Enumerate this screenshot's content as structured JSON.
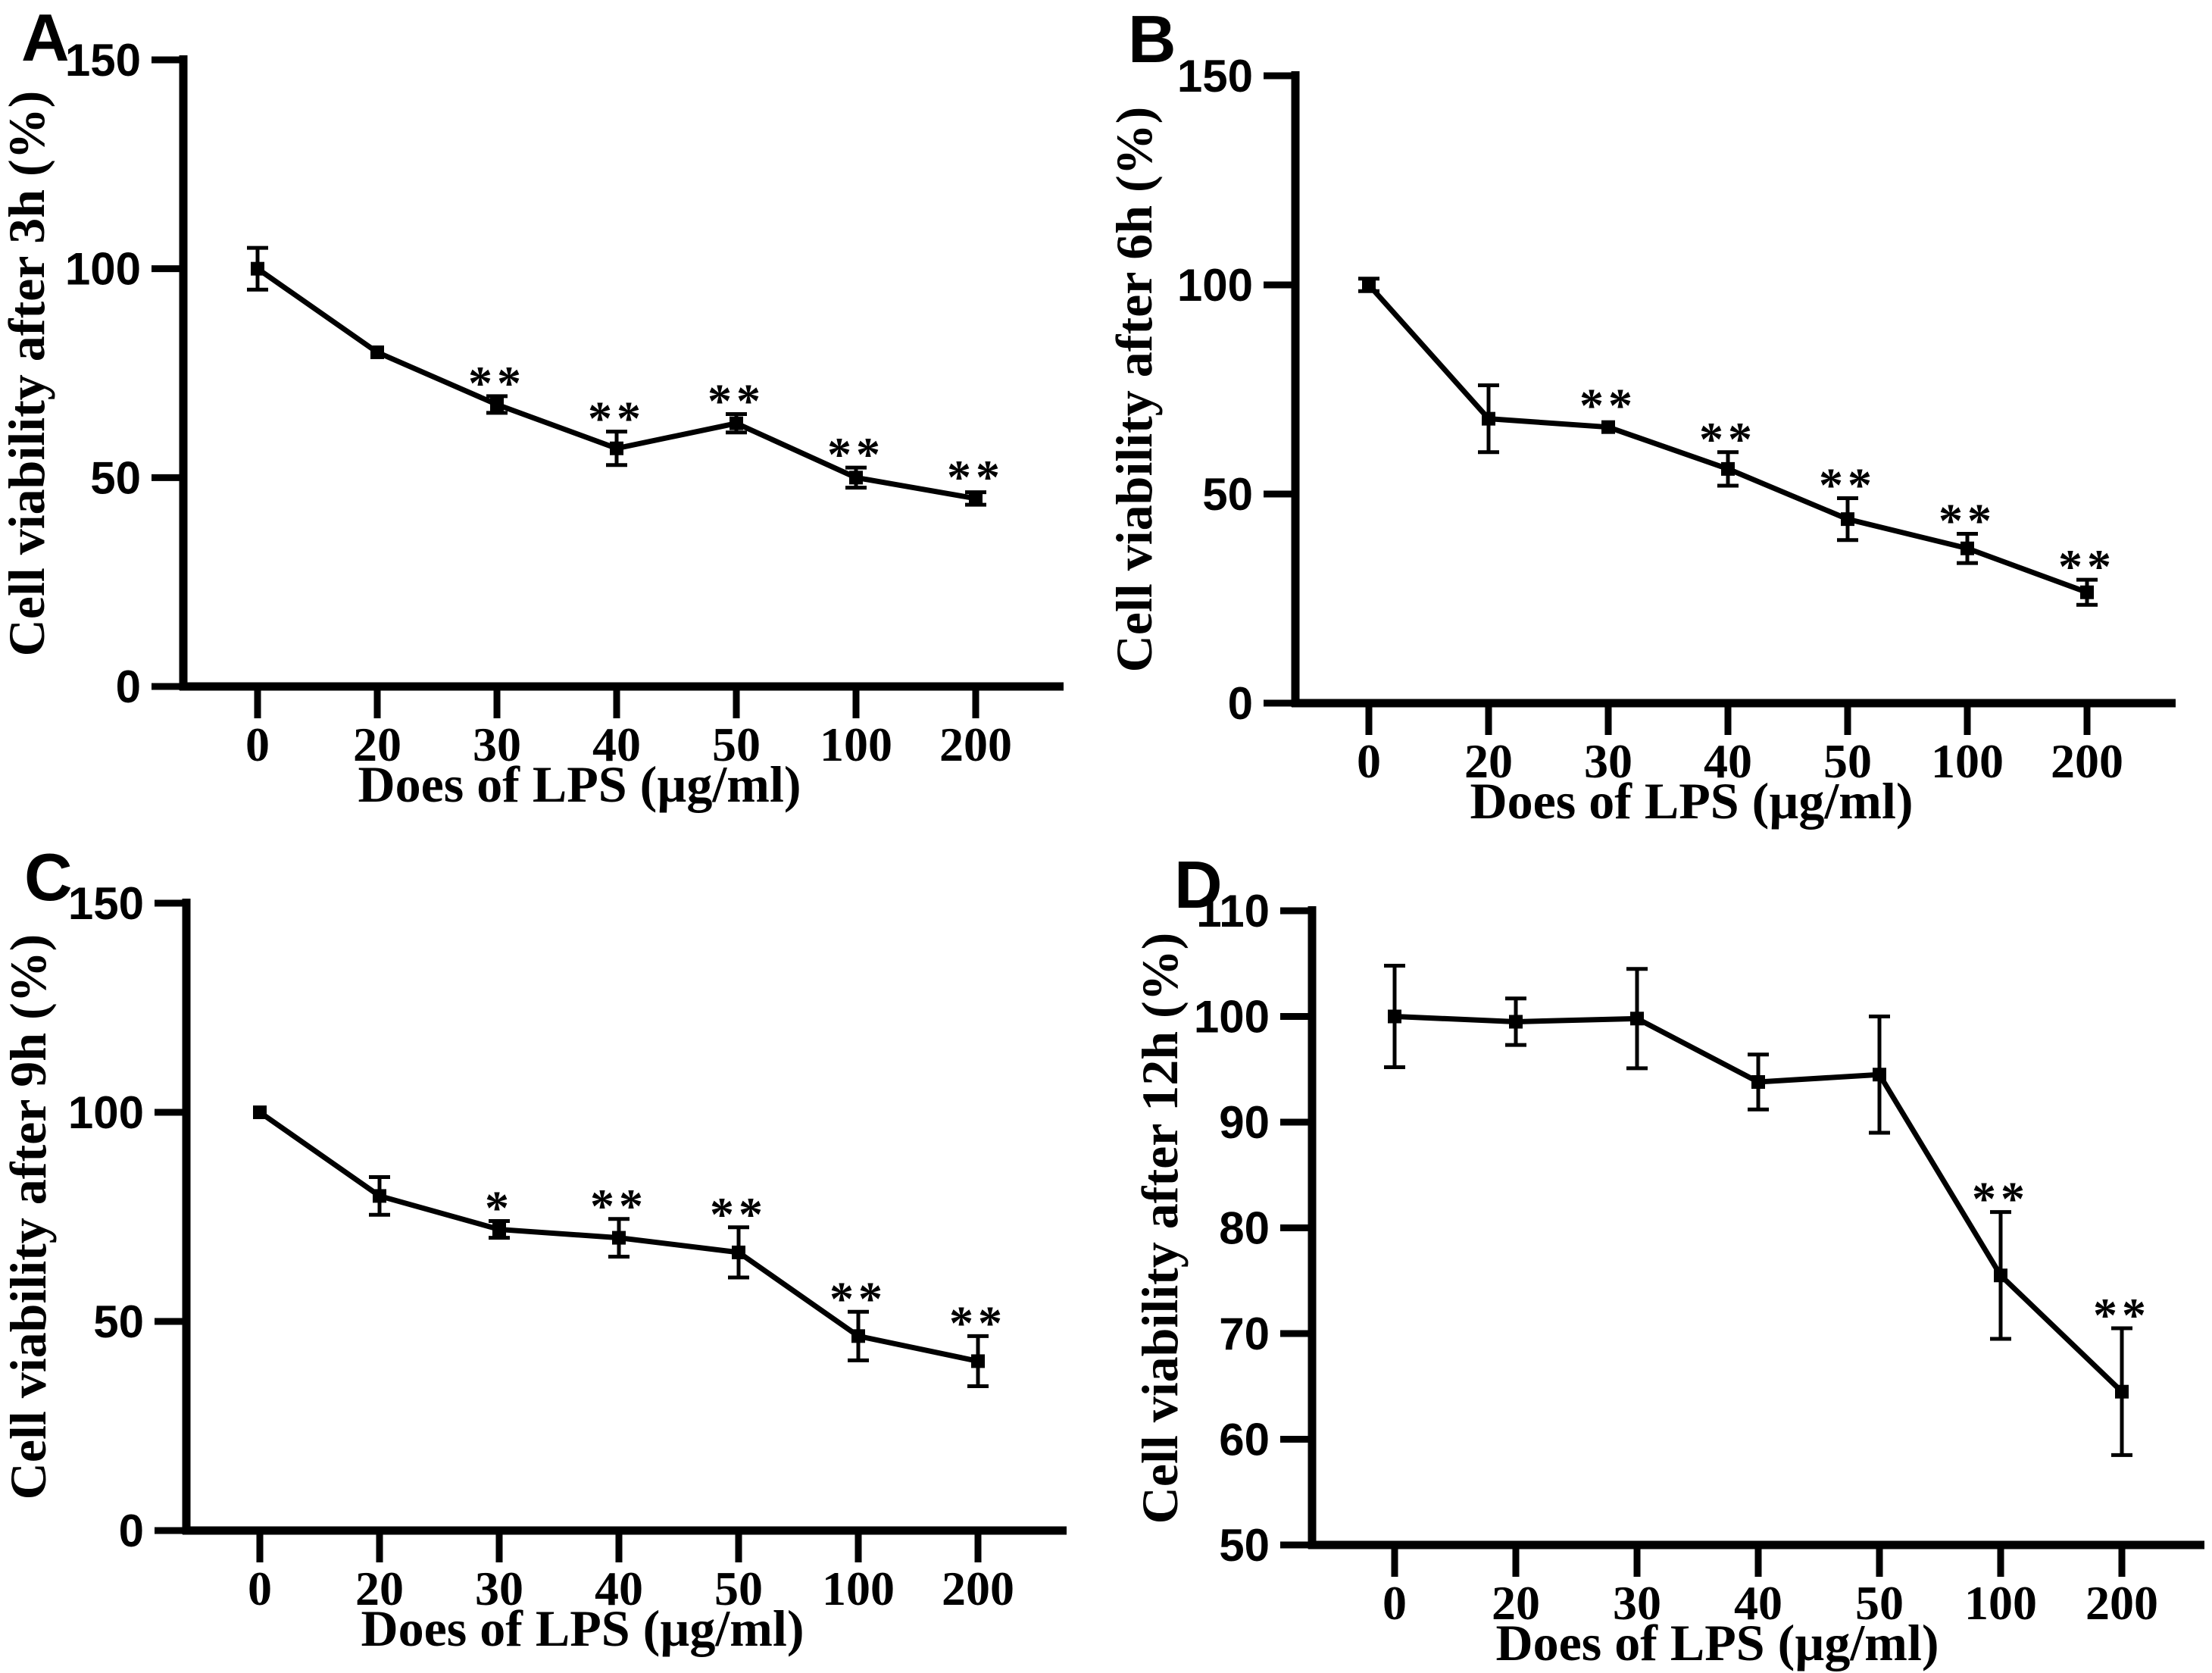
{
  "colors": {
    "ink": "#000000",
    "background": "#ffffff"
  },
  "chart_data": [
    {
      "type": "line",
      "panel": "A",
      "title": "",
      "ylabel": "Cell viability after 3h (%)",
      "xlabel": "Does of LPS (µg/ml)",
      "categories": [
        "0",
        "20",
        "30",
        "40",
        "50",
        "100",
        "200"
      ],
      "series": [
        {
          "name": "cell-viability-3h",
          "values": [
            100,
            80,
            67.5,
            57,
            63,
            50,
            45
          ],
          "errors": [
            5,
            0,
            2,
            4,
            2.2,
            2.4,
            1.5
          ],
          "significance": [
            "",
            "",
            "**",
            "**",
            "**",
            "**",
            "**"
          ]
        }
      ],
      "ylim": [
        0,
        150
      ],
      "yticks": [
        0,
        50,
        100,
        150
      ],
      "marker": "filled-square",
      "line_color": "#000000",
      "grid": false,
      "legend": "none"
    },
    {
      "type": "line",
      "panel": "B",
      "title": "",
      "ylabel": "Cell viability after 6h (%)",
      "xlabel": "Does of LPS (µg/ml)",
      "categories": [
        "0",
        "20",
        "30",
        "40",
        "50",
        "100",
        "200"
      ],
      "series": [
        {
          "name": "cell-viability-6h",
          "values": [
            100,
            68,
            66,
            56,
            44,
            37,
            26.5
          ],
          "errors": [
            1.5,
            8,
            0,
            4,
            5,
            3.5,
            3
          ],
          "significance": [
            "",
            "",
            "**",
            "**",
            "**",
            "**",
            "**"
          ]
        }
      ],
      "ylim": [
        0,
        150
      ],
      "yticks": [
        0,
        50,
        100,
        150
      ],
      "marker": "filled-square",
      "line_color": "#000000",
      "grid": false,
      "legend": "none"
    },
    {
      "type": "line",
      "panel": "C",
      "title": "",
      "ylabel": "Cell viability after 9h (%)",
      "xlabel": "Does of LPS (µg/ml)",
      "categories": [
        "0",
        "20",
        "30",
        "40",
        "50",
        "100",
        "200"
      ],
      "series": [
        {
          "name": "cell-viability-9h",
          "values": [
            100,
            80,
            72,
            70,
            66.5,
            46.5,
            40.5
          ],
          "errors": [
            0,
            4.5,
            2,
            4.5,
            6,
            5.8,
            6
          ],
          "significance": [
            "",
            "",
            "*",
            "**",
            "**",
            "**",
            "**"
          ]
        }
      ],
      "ylim": [
        0,
        150
      ],
      "yticks": [
        0,
        50,
        100,
        150
      ],
      "marker": "filled-square",
      "line_color": "#000000",
      "grid": false,
      "legend": "none"
    },
    {
      "type": "line",
      "panel": "D",
      "title": "",
      "ylabel": "Cell viability after 12h (%)",
      "xlabel": "Does of LPS (µg/ml)",
      "categories": [
        "0",
        "20",
        "30",
        "40",
        "50",
        "100",
        "200"
      ],
      "series": [
        {
          "name": "cell-viability-12h",
          "values": [
            100,
            99.5,
            99.8,
            93.8,
            94.5,
            75.5,
            64.5
          ],
          "errors": [
            4.8,
            2.2,
            4.7,
            2.6,
            5.5,
            6,
            6
          ],
          "significance": [
            "",
            "",
            "",
            "",
            "",
            "**",
            "**"
          ]
        }
      ],
      "ylim": [
        50,
        110
      ],
      "yticks": [
        50,
        60,
        70,
        80,
        90,
        100,
        110
      ],
      "marker": "filled-square",
      "line_color": "#000000",
      "grid": false,
      "legend": "none"
    }
  ]
}
